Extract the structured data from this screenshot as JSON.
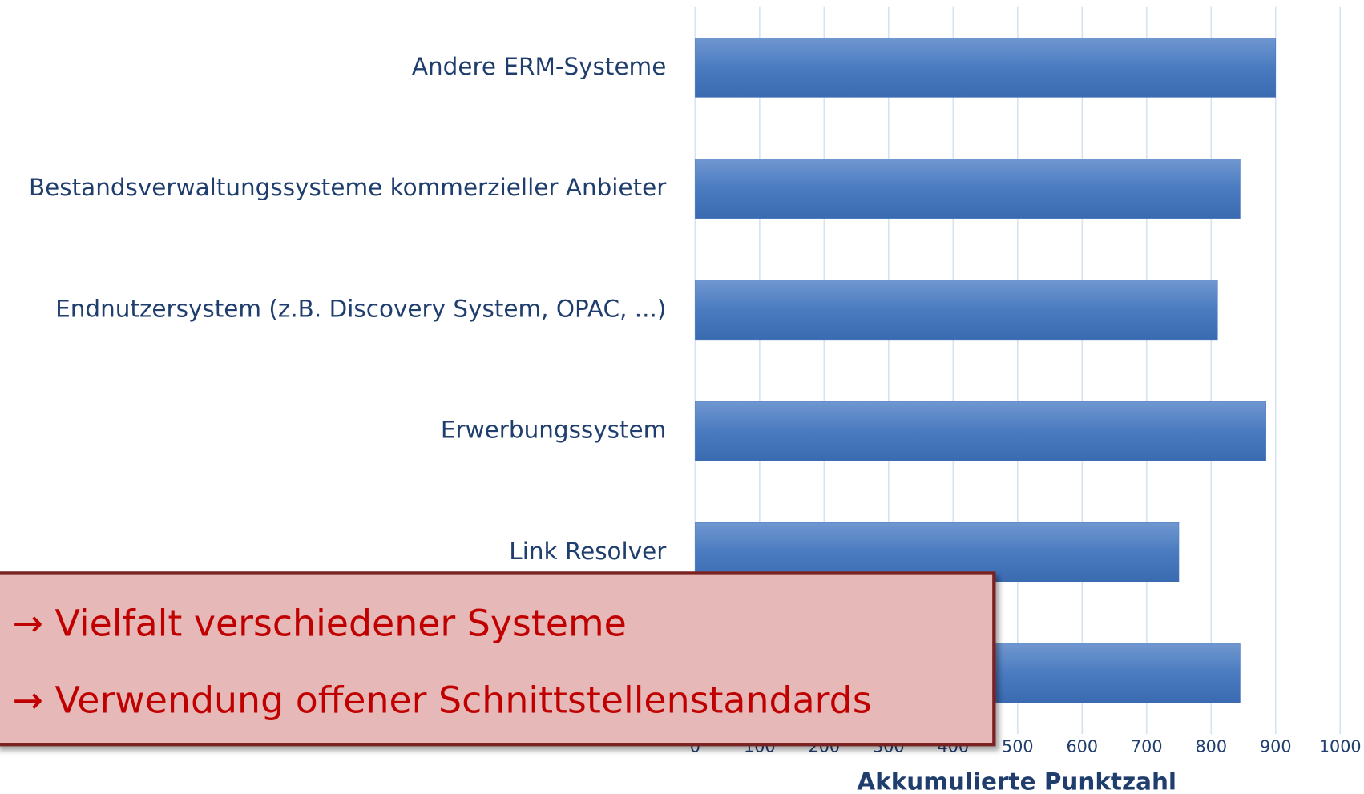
{
  "chart_data": {
    "type": "bar",
    "orientation": "horizontal",
    "categories": [
      "Andere ERM-Systeme",
      "Bestandsverwaltungssysteme kommerzieller Anbieter",
      "Endnutzersystem (z.B. Discovery System, OPAC, ...)",
      "Erwerbungssystem",
      "Link Resolver",
      null
    ],
    "values": [
      900,
      845,
      810,
      885,
      750,
      845
    ],
    "color": "#4a7bc0",
    "xlabel": "Akkumulierte Punktzahl",
    "xlim": [
      0,
      1000
    ],
    "xticks": [
      0,
      100,
      200,
      300,
      400,
      500,
      600,
      700,
      800,
      900,
      1000
    ],
    "grid": true
  },
  "callout": {
    "lines": [
      "→ Vielfalt verschiedener Systeme",
      "→ Verwendung offener Schnittstellenstandards"
    ]
  }
}
